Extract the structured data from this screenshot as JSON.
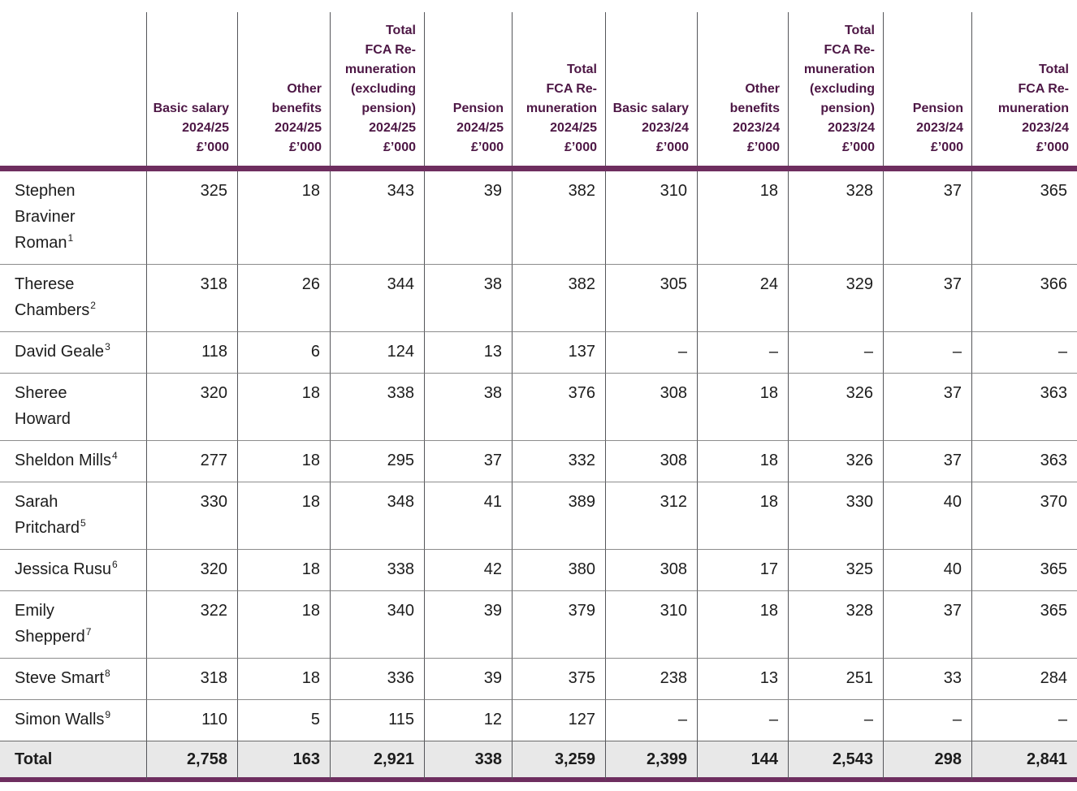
{
  "colors": {
    "header_text": "#4d1745",
    "thick_rule": "#6e2e5f",
    "grid_line": "#55565a",
    "row_line": "#8c8c8c",
    "total_row_background": "#e8e8e8"
  },
  "table": {
    "columns": [
      "",
      "Basic salary\n2024/25\n£’000",
      "Other\nbenefits\n2024/25\n£’000",
      "Total\nFCA Re-\nmuneration\n(excluding\npension)\n2024/25\n£’000",
      "Pension\n2024/25\n£’000",
      "Total\nFCA Re-\nmuneration\n2024/25\n£’000",
      "Basic salary\n2023/24\n£’000",
      "Other\nbenefits\n2023/24\n£’000",
      "Total\nFCA Re-\nmuneration\n(excluding\npension)\n2023/24\n£’000",
      "Pension\n2023/24\n£’000",
      "Total\nFCA Re-\nmuneration\n2023/24\n£’000"
    ],
    "rows": [
      {
        "name": "Stephen\nBraviner\nRoman",
        "footnote": "1",
        "values": [
          "325",
          "18",
          "343",
          "39",
          "382",
          "310",
          "18",
          "328",
          "37",
          "365"
        ]
      },
      {
        "name": "Therese\nChambers",
        "footnote": "2",
        "values": [
          "318",
          "26",
          "344",
          "38",
          "382",
          "305",
          "24",
          "329",
          "37",
          "366"
        ]
      },
      {
        "name": "David Geale",
        "footnote": "3",
        "values": [
          "118",
          "6",
          "124",
          "13",
          "137",
          "–",
          "–",
          "–",
          "–",
          "–"
        ]
      },
      {
        "name": "Sheree\nHoward",
        "footnote": "",
        "values": [
          "320",
          "18",
          "338",
          "38",
          "376",
          "308",
          "18",
          "326",
          "37",
          "363"
        ]
      },
      {
        "name": "Sheldon Mills",
        "footnote": "4",
        "values": [
          "277",
          "18",
          "295",
          "37",
          "332",
          "308",
          "18",
          "326",
          "37",
          "363"
        ]
      },
      {
        "name": "Sarah\nPritchard",
        "footnote": "5",
        "values": [
          "330",
          "18",
          "348",
          "41",
          "389",
          "312",
          "18",
          "330",
          "40",
          "370"
        ]
      },
      {
        "name": "Jessica Rusu",
        "footnote": "6",
        "values": [
          "320",
          "18",
          "338",
          "42",
          "380",
          "308",
          "17",
          "325",
          "40",
          "365"
        ]
      },
      {
        "name": "Emily\nShepperd",
        "footnote": "7",
        "values": [
          "322",
          "18",
          "340",
          "39",
          "379",
          "310",
          "18",
          "328",
          "37",
          "365"
        ]
      },
      {
        "name": "Steve Smart",
        "footnote": "8",
        "values": [
          "318",
          "18",
          "336",
          "39",
          "375",
          "238",
          "13",
          "251",
          "33",
          "284"
        ]
      },
      {
        "name": "Simon Walls",
        "footnote": "9",
        "values": [
          "110",
          "5",
          "115",
          "12",
          "127",
          "–",
          "–",
          "–",
          "–",
          "–"
        ]
      }
    ],
    "total": {
      "label": "Total",
      "values": [
        "2,758",
        "163",
        "2,921",
        "338",
        "3,259",
        "2,399",
        "144",
        "2,543",
        "298",
        "2,841"
      ]
    }
  }
}
